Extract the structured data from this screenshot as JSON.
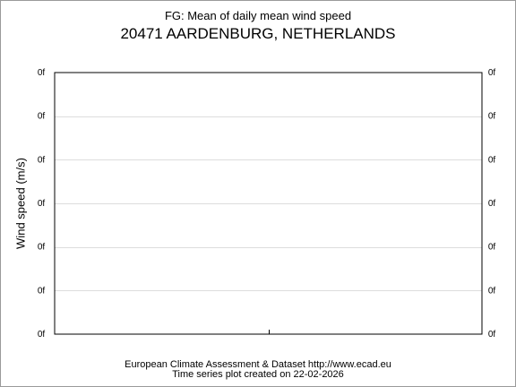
{
  "chart_data": {
    "type": "line",
    "title": "FG: Mean of daily mean wind speed",
    "subtitle": "20471 AARDENBURG, NETHERLANDS",
    "xlabel": "",
    "ylabel": "Wind speed (m/s)",
    "y_tick_labels": [
      "0f",
      "0f",
      "0f",
      "0f",
      "0f",
      "0f",
      "0f"
    ],
    "series": [],
    "grid": true,
    "legend": "none",
    "colors": {
      "grid": "#dddddd",
      "axes": "#000000",
      "frame": "#9a9a9a"
    }
  },
  "footer": {
    "line1": "European Climate Assessment & Dataset  http://www.ecad.eu",
    "line2": "Time series plot created on 22-02-2026"
  }
}
